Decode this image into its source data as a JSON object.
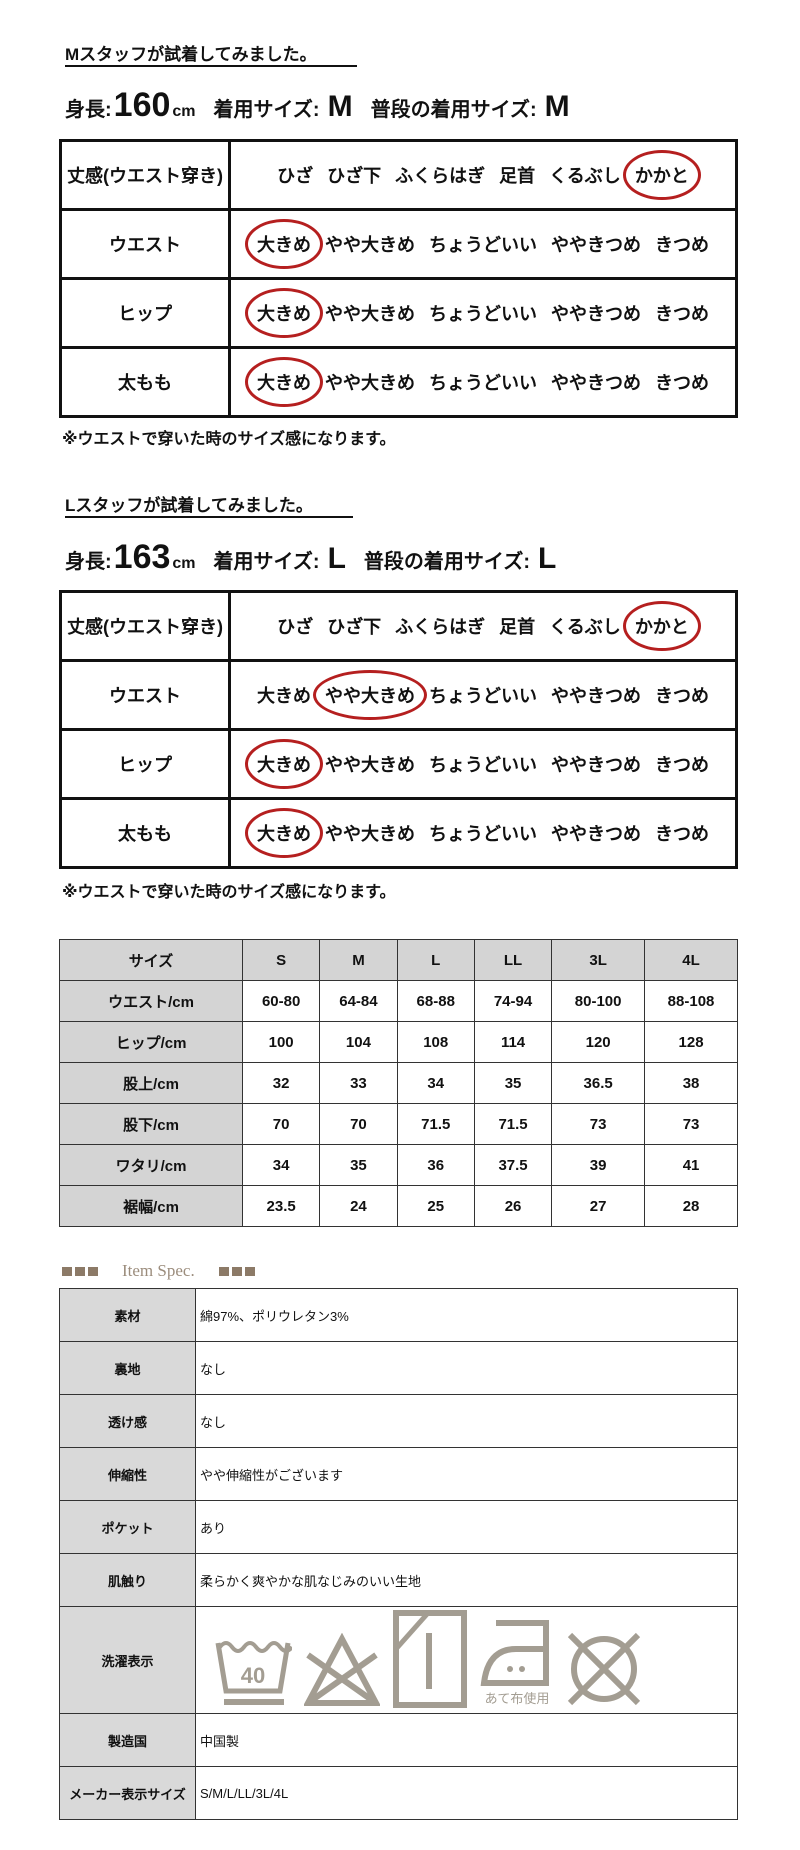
{
  "m_section": {
    "title": "Mスタッフが試着してみました。",
    "height_label": "身長:",
    "height_value": "160",
    "height_unit": "cm",
    "wear_label": "着用サイズ:",
    "wear_value": "M",
    "usual_label": "普段の着用サイズ:",
    "usual_value": "M",
    "rows": [
      {
        "label": "丈感(ウエスト穿き)",
        "options": [
          "ひざ",
          "ひざ下",
          "ふくらはぎ",
          "足首",
          "くるぶし",
          "かかと"
        ],
        "selected": "かかと"
      },
      {
        "label": "ウエスト",
        "options": [
          "大きめ",
          "やや大きめ",
          "ちょうどいい",
          "ややきつめ",
          "きつめ"
        ],
        "selected": "大きめ"
      },
      {
        "label": "ヒップ",
        "options": [
          "大きめ",
          "やや大きめ",
          "ちょうどいい",
          "ややきつめ",
          "きつめ"
        ],
        "selected": "大きめ"
      },
      {
        "label": "太もも",
        "options": [
          "大きめ",
          "やや大きめ",
          "ちょうどいい",
          "ややきつめ",
          "きつめ"
        ],
        "selected": "大きめ"
      }
    ],
    "note": "※ウエストで穿いた時のサイズ感になります。"
  },
  "l_section": {
    "title": "Lスタッフが試着してみました。",
    "height_label": "身長:",
    "height_value": "163",
    "height_unit": "cm",
    "wear_label": "着用サイズ:",
    "wear_value": "L",
    "usual_label": "普段の着用サイズ:",
    "usual_value": "L",
    "rows": [
      {
        "label": "丈感(ウエスト穿き)",
        "options": [
          "ひざ",
          "ひざ下",
          "ふくらはぎ",
          "足首",
          "くるぶし",
          "かかと"
        ],
        "selected": "かかと"
      },
      {
        "label": "ウエスト",
        "options": [
          "大きめ",
          "やや大きめ",
          "ちょうどいい",
          "ややきつめ",
          "きつめ"
        ],
        "selected": "やや大きめ"
      },
      {
        "label": "ヒップ",
        "options": [
          "大きめ",
          "やや大きめ",
          "ちょうどいい",
          "ややきつめ",
          "きつめ"
        ],
        "selected": "大きめ"
      },
      {
        "label": "太もも",
        "options": [
          "大きめ",
          "やや大きめ",
          "ちょうどいい",
          "ややきつめ",
          "きつめ"
        ],
        "selected": "大きめ"
      }
    ],
    "note": "※ウエストで穿いた時のサイズ感になります。"
  },
  "size_table": {
    "header": [
      "サイズ",
      "S",
      "M",
      "L",
      "LL",
      "3L",
      "4L"
    ],
    "rows": [
      [
        "ウエスト/cm",
        "60-80",
        "64-84",
        "68-88",
        "74-94",
        "80-100",
        "88-108"
      ],
      [
        "ヒップ/cm",
        "100",
        "104",
        "108",
        "114",
        "120",
        "128"
      ],
      [
        "股上/cm",
        "32",
        "33",
        "34",
        "35",
        "36.5",
        "38"
      ],
      [
        "股下/cm",
        "70",
        "70",
        "71.5",
        "71.5",
        "73",
        "73"
      ],
      [
        "ワタリ/cm",
        "34",
        "35",
        "36",
        "37.5",
        "39",
        "41"
      ],
      [
        "裾幅/cm",
        "23.5",
        "24",
        "25",
        "26",
        "27",
        "28"
      ]
    ]
  },
  "spec": {
    "heading": "Item Spec.",
    "rows": [
      {
        "label": "素材",
        "value": "綿97%、ポリウレタン3%"
      },
      {
        "label": "裏地",
        "value": "なし"
      },
      {
        "label": "透け感",
        "value": "なし"
      },
      {
        "label": "伸縮性",
        "value": "やや伸縮性がございます"
      },
      {
        "label": "ポケット",
        "value": "あり"
      },
      {
        "label": "肌触り",
        "value": "柔らかく爽やかな肌なじみのいい生地"
      },
      {
        "label": "洗濯表示",
        "icons": [
          "wash-40-gentle-icon",
          "no-bleach-icon",
          "line-dry-shade-icon",
          "iron-low-with-cloth-icon",
          "no-dry-clean-icon"
        ],
        "iron_note": "あて布使用"
      },
      {
        "label": "製造国",
        "value": "中国製"
      },
      {
        "label": "メーカー表示サイズ",
        "value": "S/M/L/LL/3L/4L"
      }
    ]
  },
  "colors": {
    "circle": "#b51f1f",
    "icon": "#a39d92",
    "spec_accent": "#8c7a67"
  }
}
